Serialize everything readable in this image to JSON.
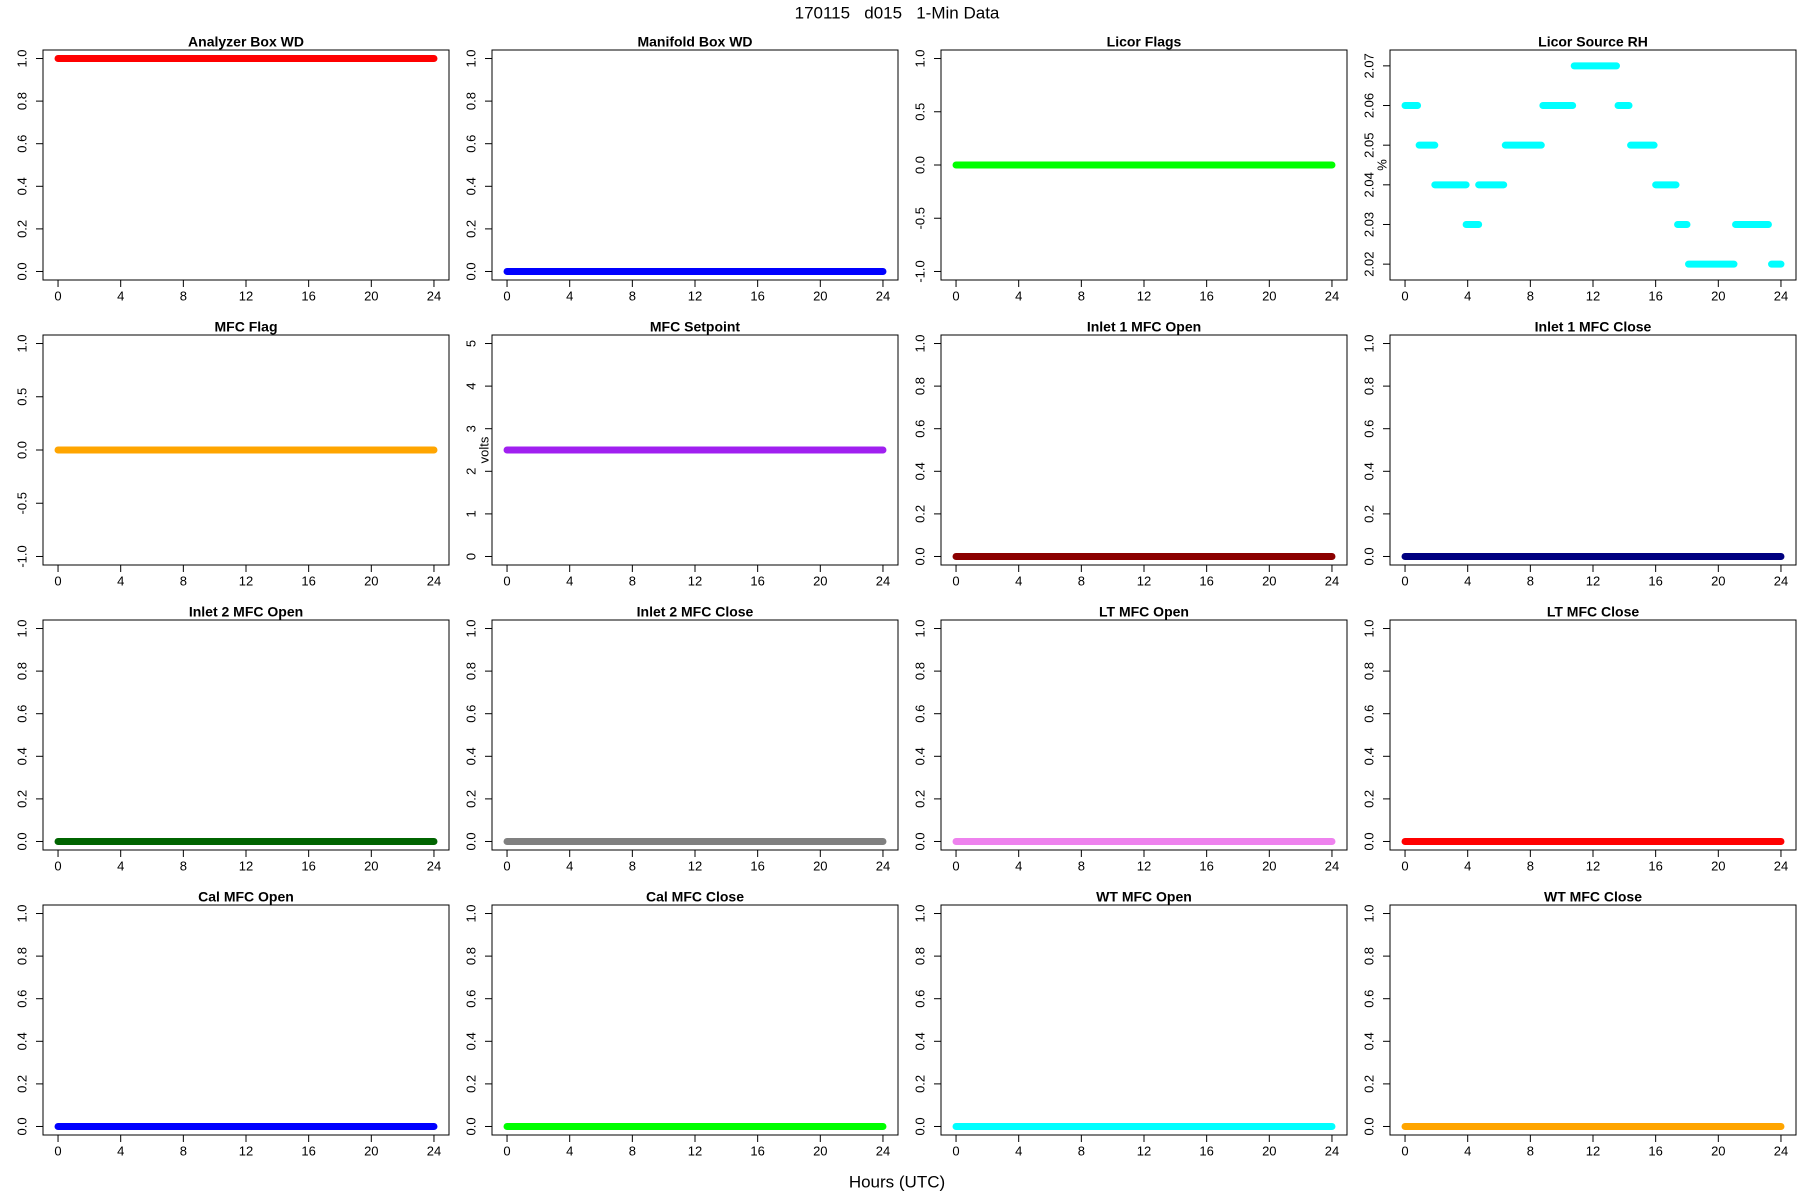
{
  "title": "170115   d015   1-Min Data",
  "xlabel": "Hours (UTC)",
  "chart_data": [
    {
      "type": "line",
      "title": "Analyzer Box WD",
      "x": [
        0,
        24
      ],
      "values": [
        1,
        1
      ],
      "color": "#ff0000",
      "xlim": [
        -0.96,
        24.96
      ],
      "xticks": [
        0,
        4,
        8,
        12,
        16,
        20,
        24
      ],
      "ylim": [
        -0.04,
        1.04
      ],
      "yticks": [
        {
          "value": 0,
          "label": "0.0"
        },
        0.2,
        0.4,
        0.6,
        0.8,
        {
          "value": 1,
          "label": "1.0"
        }
      ]
    },
    {
      "type": "line",
      "title": "Manifold Box WD",
      "x": [
        0,
        24
      ],
      "values": [
        0,
        0
      ],
      "color": "#0000ff",
      "xlim": [
        -0.96,
        24.96
      ],
      "xticks": [
        0,
        4,
        8,
        12,
        16,
        20,
        24
      ],
      "ylim": [
        -0.04,
        1.04
      ],
      "yticks": [
        {
          "value": 0,
          "label": "0.0"
        },
        0.2,
        0.4,
        0.6,
        0.8,
        {
          "value": 1,
          "label": "1.0"
        }
      ]
    },
    {
      "type": "line",
      "title": "Licor Flags",
      "x": [
        0,
        24
      ],
      "values": [
        0,
        0
      ],
      "color": "#00ff00",
      "xlim": [
        -0.96,
        24.96
      ],
      "xticks": [
        0,
        4,
        8,
        12,
        16,
        20,
        24
      ],
      "ylim": [
        -1.08,
        1.08
      ],
      "yticks": [
        {
          "value": -1,
          "label": "-1.0"
        },
        -0.5,
        {
          "value": 0,
          "label": "0.0"
        },
        0.5,
        {
          "value": 1,
          "label": "1.0"
        }
      ]
    },
    {
      "type": "line",
      "title": "Licor Source RH",
      "ylabel": "%",
      "color": "#00ffff",
      "x": [
        0,
        0.8,
        null,
        0.9,
        1.9,
        null,
        1.9,
        3.9,
        null,
        3.9,
        4.7,
        null,
        4.7,
        6.3,
        null,
        6.4,
        8.7,
        null,
        8.8,
        10.7,
        null,
        10.8,
        13.5,
        null,
        13.6,
        14.3,
        null,
        14.4,
        15.9,
        null,
        16.0,
        17.3,
        null,
        17.4,
        18.0,
        null,
        18.1,
        21.0,
        null,
        21.1,
        23.2,
        null,
        23.4,
        24
      ],
      "values": [
        2.06,
        2.06,
        null,
        2.05,
        2.05,
        null,
        2.04,
        2.04,
        null,
        2.03,
        2.03,
        null,
        2.04,
        2.04,
        null,
        2.05,
        2.05,
        null,
        2.06,
        2.06,
        null,
        2.07,
        2.07,
        null,
        2.06,
        2.06,
        null,
        2.05,
        2.05,
        null,
        2.04,
        2.04,
        null,
        2.03,
        2.03,
        null,
        2.02,
        2.02,
        null,
        2.03,
        2.03,
        null,
        2.02,
        2.02
      ],
      "xlim": [
        -0.96,
        24.96
      ],
      "xticks": [
        0,
        4,
        8,
        12,
        16,
        20,
        24
      ],
      "ylim": [
        2.016,
        2.074
      ],
      "yticks": [
        2.02,
        2.03,
        2.04,
        2.05,
        2.06,
        2.07
      ]
    },
    {
      "type": "line",
      "title": "MFC Flag",
      "x": [
        0,
        24
      ],
      "values": [
        0,
        0
      ],
      "color": "#ffa500",
      "xlim": [
        -0.96,
        24.96
      ],
      "xticks": [
        0,
        4,
        8,
        12,
        16,
        20,
        24
      ],
      "ylim": [
        -1.08,
        1.08
      ],
      "yticks": [
        {
          "value": -1,
          "label": "-1.0"
        },
        -0.5,
        {
          "value": 0,
          "label": "0.0"
        },
        0.5,
        {
          "value": 1,
          "label": "1.0"
        }
      ]
    },
    {
      "type": "line",
      "title": "MFC Setpoint",
      "ylabel": "volts",
      "x": [
        0,
        24
      ],
      "values": [
        2.5,
        2.5
      ],
      "color": "#a020f0",
      "xlim": [
        -0.96,
        24.96
      ],
      "xticks": [
        0,
        4,
        8,
        12,
        16,
        20,
        24
      ],
      "ylim": [
        -0.2,
        5.2
      ],
      "yticks": [
        0,
        1,
        2,
        3,
        4,
        5
      ]
    },
    {
      "type": "line",
      "title": "Inlet 1 MFC Open",
      "x": [
        0,
        24
      ],
      "values": [
        0,
        0
      ],
      "color": "#8b0000",
      "xlim": [
        -0.96,
        24.96
      ],
      "xticks": [
        0,
        4,
        8,
        12,
        16,
        20,
        24
      ],
      "ylim": [
        -0.04,
        1.04
      ],
      "yticks": [
        {
          "value": 0,
          "label": "0.0"
        },
        0.2,
        0.4,
        0.6,
        0.8,
        {
          "value": 1,
          "label": "1.0"
        }
      ]
    },
    {
      "type": "line",
      "title": "Inlet 1 MFC Close",
      "x": [
        0,
        24
      ],
      "values": [
        0,
        0
      ],
      "color": "#000080",
      "xlim": [
        -0.96,
        24.96
      ],
      "xticks": [
        0,
        4,
        8,
        12,
        16,
        20,
        24
      ],
      "ylim": [
        -0.04,
        1.04
      ],
      "yticks": [
        {
          "value": 0,
          "label": "0.0"
        },
        0.2,
        0.4,
        0.6,
        0.8,
        {
          "value": 1,
          "label": "1.0"
        }
      ]
    },
    {
      "type": "line",
      "title": "Inlet 2 MFC Open",
      "x": [
        0,
        24
      ],
      "values": [
        0,
        0
      ],
      "color": "#006400",
      "xlim": [
        -0.96,
        24.96
      ],
      "xticks": [
        0,
        4,
        8,
        12,
        16,
        20,
        24
      ],
      "ylim": [
        -0.04,
        1.04
      ],
      "yticks": [
        {
          "value": 0,
          "label": "0.0"
        },
        0.2,
        0.4,
        0.6,
        0.8,
        {
          "value": 1,
          "label": "1.0"
        }
      ]
    },
    {
      "type": "line",
      "title": "Inlet 2 MFC Close",
      "x": [
        0,
        24
      ],
      "values": [
        0,
        0
      ],
      "color": "#808080",
      "xlim": [
        -0.96,
        24.96
      ],
      "xticks": [
        0,
        4,
        8,
        12,
        16,
        20,
        24
      ],
      "ylim": [
        -0.04,
        1.04
      ],
      "yticks": [
        {
          "value": 0,
          "label": "0.0"
        },
        0.2,
        0.4,
        0.6,
        0.8,
        {
          "value": 1,
          "label": "1.0"
        }
      ]
    },
    {
      "type": "line",
      "title": "LT MFC Open",
      "x": [
        0,
        24
      ],
      "values": [
        0,
        0
      ],
      "color": "#ee82ee",
      "xlim": [
        -0.96,
        24.96
      ],
      "xticks": [
        0,
        4,
        8,
        12,
        16,
        20,
        24
      ],
      "ylim": [
        -0.04,
        1.04
      ],
      "yticks": [
        {
          "value": 0,
          "label": "0.0"
        },
        0.2,
        0.4,
        0.6,
        0.8,
        {
          "value": 1,
          "label": "1.0"
        }
      ]
    },
    {
      "type": "line",
      "title": "LT MFC Close",
      "x": [
        0,
        24
      ],
      "values": [
        0,
        0
      ],
      "color": "#ff0000",
      "xlim": [
        -0.96,
        24.96
      ],
      "xticks": [
        0,
        4,
        8,
        12,
        16,
        20,
        24
      ],
      "ylim": [
        -0.04,
        1.04
      ],
      "yticks": [
        {
          "value": 0,
          "label": "0.0"
        },
        0.2,
        0.4,
        0.6,
        0.8,
        {
          "value": 1,
          "label": "1.0"
        }
      ]
    },
    {
      "type": "line",
      "title": "Cal MFC Open",
      "x": [
        0,
        24
      ],
      "values": [
        0,
        0
      ],
      "color": "#0000ff",
      "xlim": [
        -0.96,
        24.96
      ],
      "xticks": [
        0,
        4,
        8,
        12,
        16,
        20,
        24
      ],
      "ylim": [
        -0.04,
        1.04
      ],
      "yticks": [
        {
          "value": 0,
          "label": "0.0"
        },
        0.2,
        0.4,
        0.6,
        0.8,
        {
          "value": 1,
          "label": "1.0"
        }
      ]
    },
    {
      "type": "line",
      "title": "Cal MFC Close",
      "x": [
        0,
        24
      ],
      "values": [
        0,
        0
      ],
      "color": "#00ff00",
      "xlim": [
        -0.96,
        24.96
      ],
      "xticks": [
        0,
        4,
        8,
        12,
        16,
        20,
        24
      ],
      "ylim": [
        -0.04,
        1.04
      ],
      "yticks": [
        {
          "value": 0,
          "label": "0.0"
        },
        0.2,
        0.4,
        0.6,
        0.8,
        {
          "value": 1,
          "label": "1.0"
        }
      ]
    },
    {
      "type": "line",
      "title": "WT MFC Open",
      "x": [
        0,
        24
      ],
      "values": [
        0,
        0
      ],
      "color": "#00ffff",
      "xlim": [
        -0.96,
        24.96
      ],
      "xticks": [
        0,
        4,
        8,
        12,
        16,
        20,
        24
      ],
      "ylim": [
        -0.04,
        1.04
      ],
      "yticks": [
        {
          "value": 0,
          "label": "0.0"
        },
        0.2,
        0.4,
        0.6,
        0.8,
        {
          "value": 1,
          "label": "1.0"
        }
      ]
    },
    {
      "type": "line",
      "title": "WT MFC Close",
      "x": [
        0,
        24
      ],
      "values": [
        0,
        0
      ],
      "color": "#ffa500",
      "xlim": [
        -0.96,
        24.96
      ],
      "xticks": [
        0,
        4,
        8,
        12,
        16,
        20,
        24
      ],
      "ylim": [
        -0.04,
        1.04
      ],
      "yticks": [
        {
          "value": 0,
          "label": "0.0"
        },
        0.2,
        0.4,
        0.6,
        0.8,
        {
          "value": 1,
          "label": "1.0"
        }
      ]
    }
  ]
}
